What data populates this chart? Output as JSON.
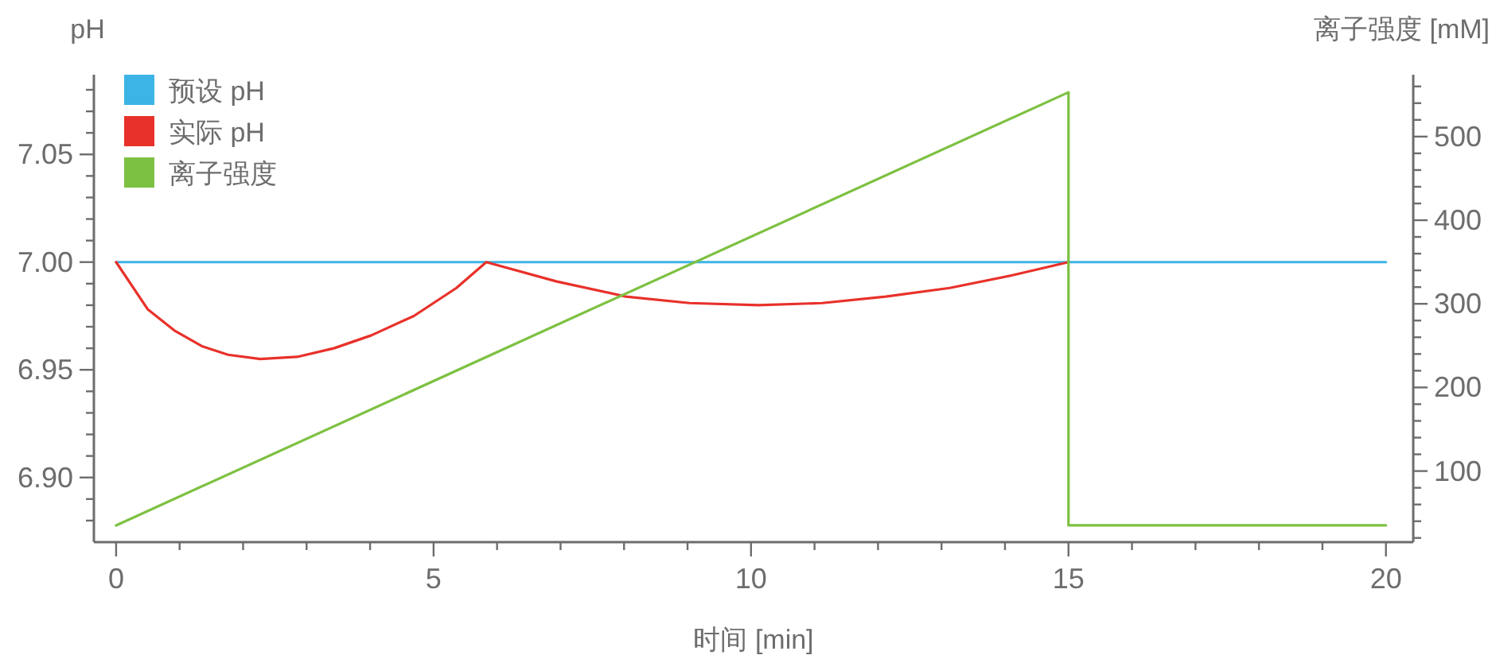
{
  "chart_data": {
    "type": "line",
    "xlabel": "时间 [min]",
    "ylabel": "pH",
    "y2label": "离子强度 [mM]",
    "xlim": [
      -0.35,
      20.43
    ],
    "ylim": [
      6.87,
      7.087
    ],
    "y2lim": [
      15,
      574
    ],
    "xticks": [
      0,
      {
        "value": 1,
        "label": null
      },
      {
        "value": 2,
        "label": null
      },
      {
        "value": 3,
        "label": null
      },
      {
        "value": 4,
        "label": null
      },
      5,
      {
        "value": 6,
        "label": null
      },
      {
        "value": 7,
        "label": null
      },
      {
        "value": 8,
        "label": null
      },
      {
        "value": 9,
        "label": null
      },
      10,
      {
        "value": 11,
        "label": null
      },
      {
        "value": 12,
        "label": null
      },
      {
        "value": 13,
        "label": null
      },
      {
        "value": 14,
        "label": null
      },
      15,
      {
        "value": 16,
        "label": null
      },
      {
        "value": 17,
        "label": null
      },
      {
        "value": 18,
        "label": null
      },
      {
        "value": 19,
        "label": null
      },
      20
    ],
    "yticks": [
      {
        "value": 6.88,
        "label": null
      },
      {
        "value": 6.89,
        "label": null
      },
      {
        "value": 6.9,
        "label": "6.90"
      },
      {
        "value": 6.91,
        "label": null
      },
      {
        "value": 6.92,
        "label": null
      },
      {
        "value": 6.93,
        "label": null
      },
      {
        "value": 6.94,
        "label": null
      },
      6.95,
      {
        "value": 6.96,
        "label": null
      },
      {
        "value": 6.97,
        "label": null
      },
      {
        "value": 6.98,
        "label": null
      },
      {
        "value": 6.99,
        "label": null
      },
      {
        "value": 7,
        "label": "7.00"
      },
      {
        "value": 7.01,
        "label": null
      },
      {
        "value": 7.02,
        "label": null
      },
      {
        "value": 7.03,
        "label": null
      },
      {
        "value": 7.04,
        "label": null
      },
      7.05,
      {
        "value": 7.06,
        "label": null
      },
      {
        "value": 7.07,
        "label": null
      },
      {
        "value": 7.08,
        "label": null
      }
    ],
    "y2ticks": [
      {
        "value": 20,
        "label": null
      },
      {
        "value": 40,
        "label": null
      },
      {
        "value": 60,
        "label": null
      },
      {
        "value": 80,
        "label": null
      },
      100,
      {
        "value": 120,
        "label": null
      },
      {
        "value": 140,
        "label": null
      },
      {
        "value": 160,
        "label": null
      },
      {
        "value": 180,
        "label": null
      },
      200,
      {
        "value": 220,
        "label": null
      },
      {
        "value": 240,
        "label": null
      },
      {
        "value": 260,
        "label": null
      },
      {
        "value": 280,
        "label": null
      },
      300,
      {
        "value": 320,
        "label": null
      },
      {
        "value": 340,
        "label": null
      },
      {
        "value": 360,
        "label": null
      },
      {
        "value": 380,
        "label": null
      },
      400,
      {
        "value": 420,
        "label": null
      },
      {
        "value": 440,
        "label": null
      },
      {
        "value": 460,
        "label": null
      },
      {
        "value": 480,
        "label": null
      },
      500,
      {
        "value": 520,
        "label": null
      },
      {
        "value": 540,
        "label": null
      },
      {
        "value": 560,
        "label": null
      }
    ],
    "legend": "top left",
    "grid": false,
    "marker": "none",
    "line_style": "solid",
    "series": [
      {
        "name": "预设 pH",
        "color": "#3cb4e5",
        "x": [
          0,
          20
        ],
        "values": [
          7.0,
          7.0
        ]
      },
      {
        "name": "实际 pH",
        "color": "#e8312a",
        "x": [
          0,
          0.5,
          0.93,
          1.35,
          1.76,
          2.27,
          2.85,
          3.43,
          4.02,
          4.69,
          5.36,
          5.83,
          6.94,
          8.03,
          9.03,
          10.12,
          11.12,
          12.12,
          13.13,
          14.13,
          15
        ],
        "values": [
          7.0,
          6.978,
          6.968,
          6.961,
          6.957,
          6.955,
          6.956,
          6.96,
          6.966,
          6.975,
          6.988,
          7.0,
          6.991,
          6.984,
          6.981,
          6.98,
          6.981,
          6.984,
          6.988,
          6.994,
          7.0
        ]
      },
      {
        "name": "离子强度",
        "color": "#7dc142",
        "axis": "y2",
        "x": [
          0,
          15,
          15,
          20
        ],
        "values": [
          35,
          553,
          35,
          35
        ]
      }
    ]
  }
}
